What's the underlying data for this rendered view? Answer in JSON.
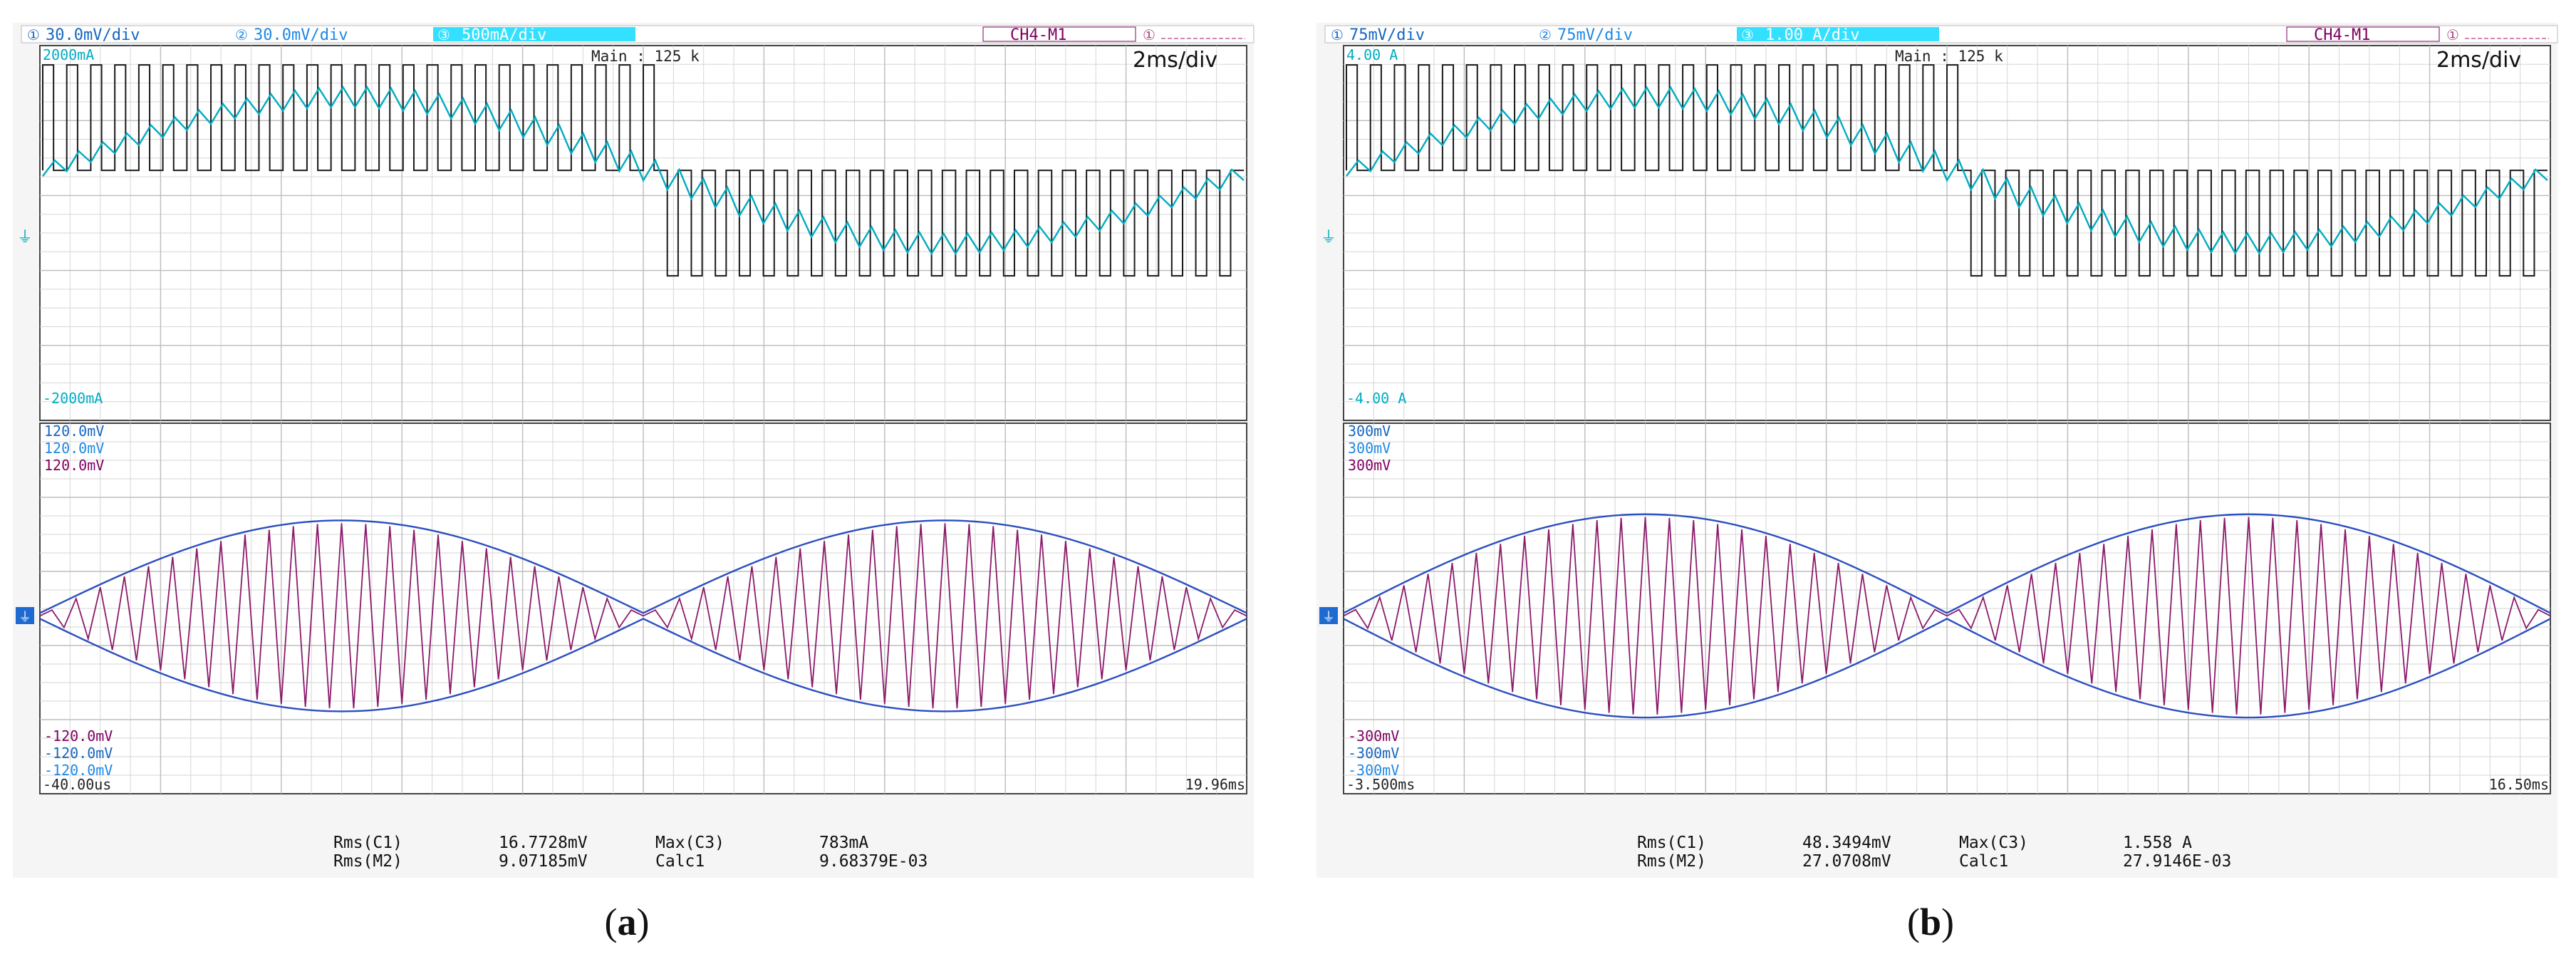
{
  "colors": {
    "ch1": "#1565c0",
    "ch2": "#1e88e5",
    "ch3": "#00acc1",
    "ch3_bg": "#33e0ff",
    "ch4": "#800060",
    "trace_black": "#1a1a1a",
    "grid": "#d6d6d6",
    "frame": "#444444",
    "envelope": "#2b4fbf",
    "trace_purple": "#8b1a6b"
  },
  "panels": [
    {
      "ch1_label": "30.0mV/div",
      "ch2_label": "30.0mV/div",
      "ch3_label": "500mA/div",
      "math_label": "CH4-M1",
      "main_label": "Main : 125 k",
      "timebase": "2ms/div",
      "upper_top": "2000mA",
      "upper_bottom": "-2000mA",
      "lower_top": [
        "120.0mV",
        "120.0mV",
        "120.0mV"
      ],
      "lower_bottom": [
        "-120.0mV",
        "-120.0mV",
        "-120.0mV"
      ],
      "t_start": "-40.00us",
      "t_end": "19.96ms",
      "meas1_name": "Rms(C1)",
      "meas1_val": "16.7728mV",
      "meas2_name": "Rms(M2)",
      "meas2_val": "9.07185mV",
      "meas3_name": "Max(C3)",
      "meas3_val": "783mA",
      "meas4_name": "Calc1",
      "meas4_val": "9.68379E-03",
      "caption": "a",
      "chart_data": {
        "type": "line",
        "current_amplitude_A": 0.783,
        "current_range_A": [
          -2.0,
          2.0
        ],
        "voltage_rms_C1_mV": 16.7728,
        "voltage_rms_M2_mV": 9.07185,
        "voltage_range_mV": [
          -120.0,
          120.0
        ],
        "time_range_ms": [
          -0.04,
          19.96
        ],
        "lower_envelope_mV": 60
      }
    },
    {
      "ch1_label": "75mV/div",
      "ch2_label": "75mV/div",
      "ch3_label": "1.00 A/div",
      "math_label": "CH4-M1",
      "main_label": "Main : 125 k",
      "timebase": "2ms/div",
      "upper_top": "4.00 A",
      "upper_bottom": "-4.00 A",
      "lower_top": [
        "300mV",
        "300mV",
        "300mV"
      ],
      "lower_bottom": [
        "-300mV",
        "-300mV",
        "-300mV"
      ],
      "t_start": "-3.500ms",
      "t_end": "16.50ms",
      "meas1_name": "Rms(C1)",
      "meas1_val": "48.3494mV",
      "meas2_name": "Rms(M2)",
      "meas2_val": "27.0708mV",
      "meas3_name": "Max(C3)",
      "meas3_val": "1.558 A",
      "meas4_name": "Calc1",
      "meas4_val": "27.9146E-03",
      "caption": "b",
      "chart_data": {
        "type": "line",
        "current_amplitude_A": 1.558,
        "current_range_A": [
          -4.0,
          4.0
        ],
        "voltage_rms_C1_mV": 48.3494,
        "voltage_rms_M2_mV": 27.0708,
        "voltage_range_mV": [
          -300,
          300
        ],
        "time_range_ms": [
          -3.5,
          16.5
        ],
        "lower_envelope_mV": 160
      }
    }
  ]
}
